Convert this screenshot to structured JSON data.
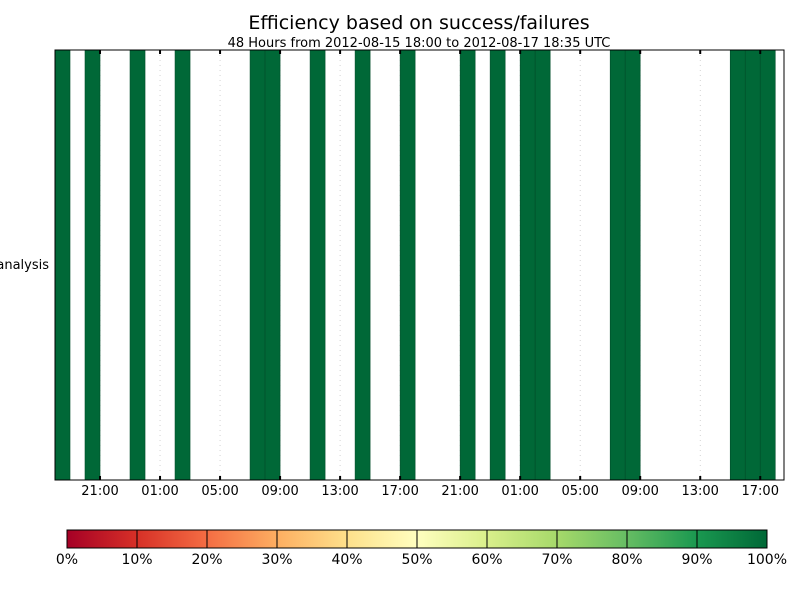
{
  "chart_data": {
    "type": "bar",
    "title": "Efficiency based on success/failures",
    "subtitle": "48 Hours from 2012-08-15 18:00 to 2012-08-17 18:35 UTC",
    "ylabel_category": "analysis",
    "x_tick_labels": [
      "21:00",
      "01:00",
      "05:00",
      "09:00",
      "13:00",
      "17:00",
      "21:00",
      "01:00",
      "05:00",
      "09:00",
      "13:00",
      "17:00"
    ],
    "x_tick_hours": [
      3,
      7,
      11,
      15,
      19,
      23,
      27,
      31,
      35,
      39,
      43,
      47
    ],
    "x_range_hours": [
      0,
      48.583
    ],
    "grid": "vertical dotted",
    "bins_start_hours": [
      0,
      2,
      5,
      8,
      13,
      14,
      17,
      20,
      23,
      27,
      29,
      31,
      32,
      37,
      38,
      45,
      46,
      47
    ],
    "bin_width_hours": 1,
    "efficiency_percent": [
      100,
      100,
      100,
      100,
      100,
      100,
      100,
      100,
      100,
      100,
      100,
      100,
      100,
      100,
      100,
      100,
      100,
      100
    ],
    "colorbar": {
      "ticks": [
        "0%",
        "10%",
        "20%",
        "30%",
        "40%",
        "50%",
        "60%",
        "70%",
        "80%",
        "90%",
        "100%"
      ],
      "colormap": "RdYlGn",
      "colors": [
        "#a50026",
        "#d73027",
        "#f46d43",
        "#fdae61",
        "#fee08b",
        "#ffffbf",
        "#d9ef8b",
        "#a6d96a",
        "#66bd63",
        "#1a9850",
        "#006837"
      ]
    }
  }
}
